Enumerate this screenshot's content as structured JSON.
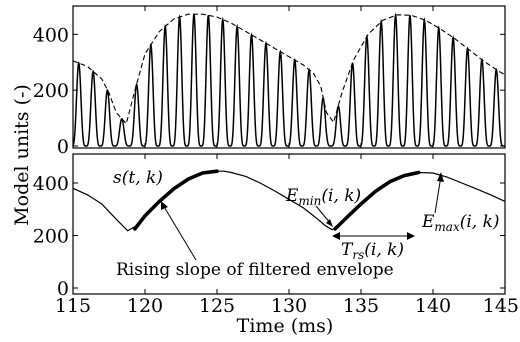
{
  "chart_data": [
    {
      "type": "line",
      "panel": "top",
      "xlim": [
        115,
        145
      ],
      "ylim": [
        0,
        480
      ],
      "yticks": [
        0,
        200,
        400
      ],
      "series": [
        {
          "style": "solid oscillation",
          "period_ms": 1.0,
          "first_peak_ms": 115.4
        },
        {
          "style": "dashed envelope",
          "x": [
            115,
            116,
            117,
            117.5,
            118,
            118.7,
            119.3,
            120,
            121,
            122,
            123,
            124,
            125,
            126,
            127,
            128,
            129,
            130,
            131,
            131.7,
            132.2,
            132.6,
            133.1,
            133.7,
            134.5,
            135.5,
            136.5,
            137.5,
            138.5,
            139.5,
            140.5,
            141.5,
            142.5,
            143.5,
            144.5,
            145
          ],
          "y": [
            305,
            285,
            240,
            190,
            120,
            80,
            200,
            330,
            410,
            455,
            472,
            472,
            462,
            440,
            410,
            380,
            350,
            320,
            290,
            260,
            215,
            120,
            85,
            195,
            310,
            400,
            450,
            470,
            468,
            450,
            420,
            385,
            345,
            305,
            270,
            255
          ]
        }
      ]
    },
    {
      "type": "line",
      "panel": "bottom",
      "xlim": [
        115,
        145
      ],
      "ylim": [
        0,
        480
      ],
      "yticks": [
        0,
        200,
        400
      ],
      "xticks": [
        115,
        120,
        125,
        130,
        135,
        140,
        145
      ],
      "xlabel": "Time (ms)",
      "series": [
        {
          "name": "s(t,k)",
          "style": "thin solid",
          "x": [
            115,
            116,
            117,
            118,
            118.8,
            119.5,
            120,
            121,
            122,
            123,
            124,
            125,
            125.5,
            126,
            127,
            128,
            129,
            130,
            131,
            132,
            132.5,
            133,
            133.5,
            134,
            135,
            136,
            137,
            138,
            139,
            140,
            141,
            142,
            143,
            144,
            145
          ],
          "y": [
            380,
            355,
            320,
            262,
            218,
            240,
            275,
            330,
            378,
            415,
            438,
            445,
            445,
            440,
            425,
            400,
            370,
            338,
            305,
            262,
            238,
            222,
            238,
            268,
            320,
            368,
            405,
            428,
            440,
            438,
            422,
            400,
            378,
            355,
            330
          ]
        },
        {
          "name": "Rising slope of filtered envelope",
          "style": "thick solid",
          "x": [
            119.3,
            120,
            121,
            122,
            123,
            124,
            125
          ],
          "y": [
            225,
            275,
            330,
            378,
            415,
            438,
            445
          ]
        },
        {
          "name": "Rising slope of filtered envelope",
          "style": "thick solid",
          "x": [
            133.2,
            134,
            135,
            136,
            137,
            138,
            139
          ],
          "y": [
            225,
            268,
            320,
            368,
            405,
            428,
            440
          ]
        }
      ]
    }
  ],
  "ylabel": "Model units (-)",
  "annotations": {
    "s_label": "s(t, k)",
    "emin": "E",
    "emin_sub": "min",
    "emin_args": "(i, k)",
    "emax": "E",
    "emax_sub": "max",
    "emax_args": "(i, k)",
    "trs": "T",
    "trs_sub": "rs",
    "trs_args": "(i, k)",
    "rising": "Rising slope of filtered envelope"
  },
  "tick_labels": {
    "x": [
      "115",
      "120",
      "125",
      "130",
      "135",
      "140",
      "145"
    ],
    "y_top": [
      "0",
      "200",
      "400"
    ],
    "y_bottom": [
      "0",
      "200",
      "400"
    ]
  }
}
